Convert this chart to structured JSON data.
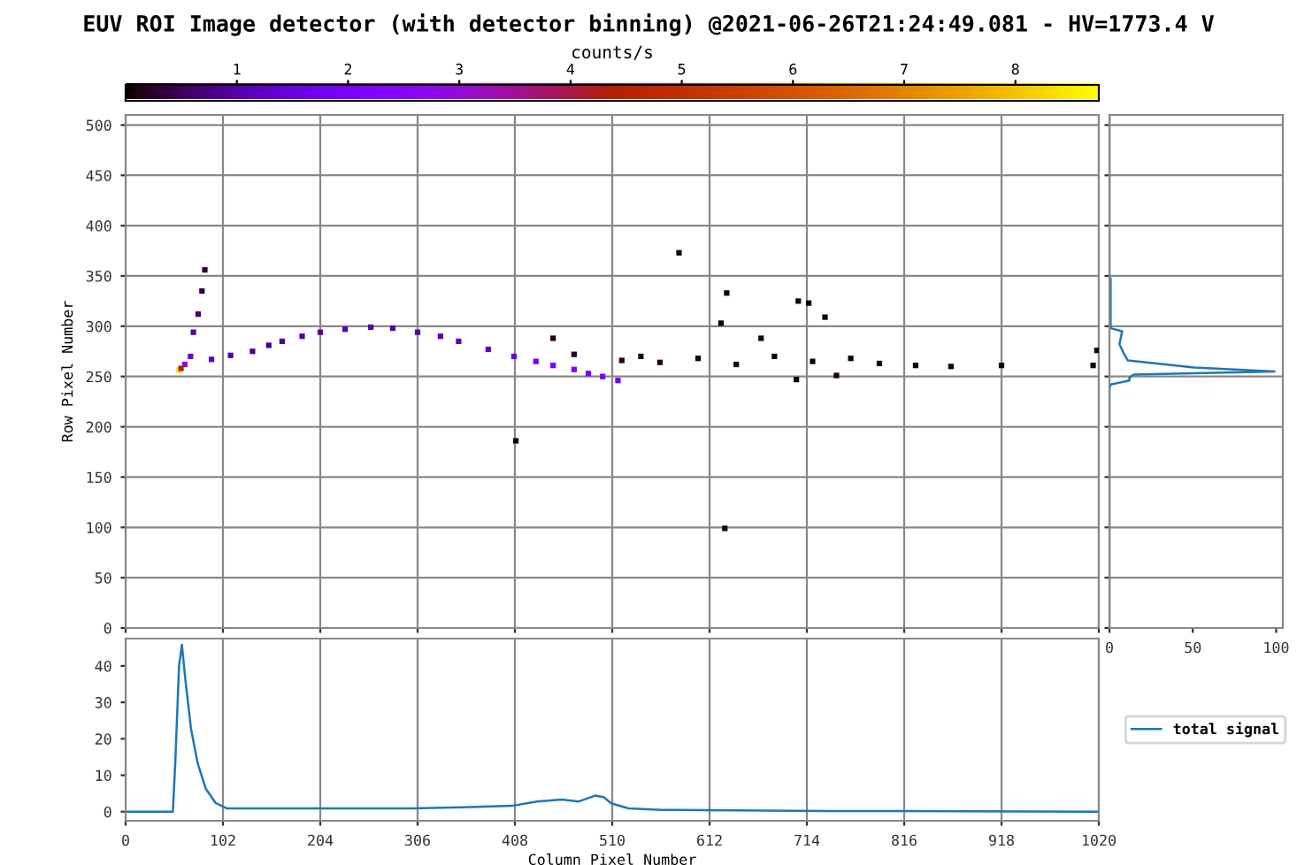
{
  "chart_data": [
    {
      "type": "scatter",
      "title": "EUV ROI Image detector (with detector binning) @2021-06-26T21:24:49.081 - HV=1773.4 V",
      "ylabel": "Row Pixel Number",
      "clabel": "counts/s",
      "clim": [
        0,
        8.75
      ],
      "cticks": [
        1,
        2,
        3,
        4,
        5,
        6,
        7,
        8
      ],
      "marker": "square",
      "grid": true,
      "tick_labels": "y",
      "xlim": [
        0,
        1020
      ],
      "ylim": [
        0,
        510
      ],
      "xticks": [
        {
          "value": 0,
          "label": null
        },
        {
          "value": 102,
          "label": null
        },
        {
          "value": 204,
          "label": null
        },
        {
          "value": 306,
          "label": null
        },
        {
          "value": 408,
          "label": null
        },
        {
          "value": 510,
          "label": null
        },
        {
          "value": 612,
          "label": null
        },
        {
          "value": 714,
          "label": null
        },
        {
          "value": 816,
          "label": null
        },
        {
          "value": 918,
          "label": null
        },
        {
          "value": 1020,
          "label": null
        }
      ],
      "yticks": [
        0,
        50,
        100,
        150,
        200,
        250,
        300,
        350,
        400,
        450,
        500
      ],
      "x": [
        56,
        58,
        62,
        68,
        71,
        76,
        80,
        83,
        90,
        110,
        133,
        150,
        164,
        185,
        204,
        230,
        257,
        280,
        306,
        330,
        349,
        380,
        407,
        430,
        448,
        470,
        485,
        500,
        516,
        409,
        628,
        580,
        630,
        624,
        705,
        716,
        733,
        666,
        703,
        745,
        865,
        828,
        918,
        1014,
        1018,
        448,
        470,
        520,
        540,
        560,
        600,
        640,
        680,
        720,
        760,
        790
      ],
      "values": [
        256,
        258,
        262,
        270,
        294,
        312,
        335,
        356,
        267,
        271,
        275,
        281,
        285,
        290,
        294,
        297,
        299,
        298,
        294,
        290,
        285,
        277,
        270,
        265,
        261,
        257,
        253,
        250,
        246,
        186,
        99,
        373,
        333,
        303,
        325,
        323,
        309,
        288,
        247,
        251,
        260,
        261,
        261,
        261,
        276,
        288,
        272,
        266,
        270,
        264,
        268,
        262,
        270,
        265,
        268,
        263
      ],
      "cvalues": [
        8.5,
        4.5,
        3,
        1.5,
        1,
        0.6,
        0.4,
        0.3,
        1.2,
        1,
        0.8,
        0.8,
        0.9,
        1,
        1,
        1.1,
        1,
        1,
        1,
        1.1,
        1.2,
        1.3,
        1.6,
        1.8,
        1.9,
        2,
        2,
        1.9,
        1.8,
        0.1,
        0.1,
        0.1,
        0.1,
        0.1,
        0.1,
        0.1,
        0.1,
        0.1,
        0.1,
        0.1,
        0.1,
        0.1,
        0.1,
        0.1,
        0.1,
        0.2,
        0.2,
        0.2,
        0.2,
        0.2,
        0.1,
        0.1,
        0.1,
        0.1,
        0.1,
        0.1
      ]
    },
    {
      "type": "line",
      "grid": "y",
      "tick_labels": "x",
      "xlim": [
        0,
        104
      ],
      "ylim": [
        0,
        510
      ],
      "xticks": [
        0,
        50,
        100
      ],
      "yticks": [
        {
          "value": 0,
          "label": null
        },
        {
          "value": 50,
          "label": null
        },
        {
          "value": 100,
          "label": null
        },
        {
          "value": 150,
          "label": null
        },
        {
          "value": 200,
          "label": null
        },
        {
          "value": 250,
          "label": null
        },
        {
          "value": 300,
          "label": null
        },
        {
          "value": 350,
          "label": null
        },
        {
          "value": 400,
          "label": null
        },
        {
          "value": 450,
          "label": null
        },
        {
          "value": 500,
          "label": null
        }
      ],
      "series": [
        {
          "color": "#1f77b4",
          "x": [
            0,
            0,
            0.7,
            0.7,
            7.6,
            6,
            8.6,
            11,
            50.7,
            99,
            14.5,
            12,
            12,
            0.7,
            0,
            0
          ],
          "values": [
            510,
            350,
            347,
            298,
            295,
            282,
            273,
            266,
            259,
            255,
            252,
            249,
            246,
            242,
            238,
            0
          ]
        }
      ]
    },
    {
      "type": "line",
      "xlabel": "Column Pixel Number",
      "grid": "x",
      "legend": "right",
      "xlim": [
        0,
        1020
      ],
      "ylim": [
        -2.5,
        47.5
      ],
      "xticks": [
        0,
        102,
        204,
        306,
        408,
        510,
        612,
        714,
        816,
        918,
        1020
      ],
      "yticks": [
        0,
        10,
        20,
        30,
        40
      ],
      "series": [
        {
          "name": "total signal",
          "color": "#1f77b4",
          "x": [
            0,
            49.5,
            52,
            56,
            59,
            62.5,
            68.6,
            75.5,
            84,
            94.6,
            106,
            214,
            301,
            353,
            405,
            431,
            457,
            475,
            492,
            501,
            509,
            527,
            562,
            735,
            1020
          ],
          "values": [
            0,
            0,
            13.3,
            40,
            45.8,
            36.5,
            22.6,
            13.3,
            6.3,
            2.3,
            0.9,
            0.9,
            0.9,
            1.2,
            1.6,
            2.8,
            3.3,
            2.8,
            4.4,
            4,
            2.3,
            0.9,
            0.5,
            0.2,
            0
          ]
        }
      ]
    }
  ]
}
